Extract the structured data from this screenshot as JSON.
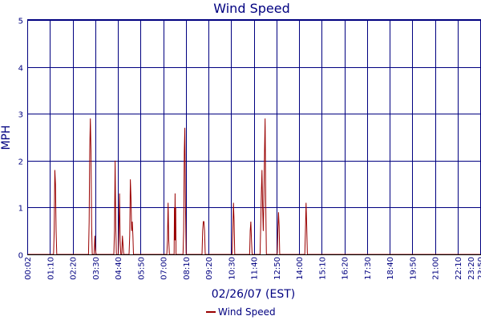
{
  "chart_data": {
    "type": "line",
    "title": "Wind Speed",
    "xlabel": "02/26/07 (EST)",
    "ylabel": "MPH",
    "ylim": [
      0,
      5
    ],
    "y_ticks": [
      "0",
      "1",
      "2",
      "3",
      "4",
      "5"
    ],
    "x_ticks": [
      "00:02",
      "01:10",
      "02:20",
      "03:30",
      "04:40",
      "05:50",
      "07:00",
      "08:10",
      "09:20",
      "10:30",
      "11:40",
      "12:50",
      "14:00",
      "15:10",
      "16:20",
      "17:30",
      "18:40",
      "19:50",
      "21:00",
      "22:10",
      "23:20",
      "23:50"
    ],
    "x_unit": "minutes of day",
    "xlim": [
      2,
      1430
    ],
    "grid": true,
    "legend_position": "bottom",
    "series": [
      {
        "name": "Wind Speed",
        "color": "#990000",
        "points": [
          [
            2,
            0
          ],
          [
            85,
            0
          ],
          [
            87,
            0.5
          ],
          [
            89,
            1.8
          ],
          [
            91,
            1.5
          ],
          [
            93,
            0.5
          ],
          [
            95,
            0
          ],
          [
            195,
            0
          ],
          [
            197,
            0.7
          ],
          [
            199,
            2.2
          ],
          [
            201,
            2.9
          ],
          [
            203,
            2.2
          ],
          [
            205,
            0.6
          ],
          [
            207,
            0
          ],
          [
            213,
            0
          ],
          [
            215,
            0.4
          ],
          [
            217,
            0.1
          ],
          [
            219,
            0
          ],
          [
            275,
            0
          ],
          [
            277,
            0.5
          ],
          [
            279,
            2.0
          ],
          [
            281,
            0.6
          ],
          [
            283,
            0
          ],
          [
            289,
            0
          ],
          [
            291,
            0.5
          ],
          [
            293,
            1.3
          ],
          [
            295,
            0.3
          ],
          [
            297,
            0
          ],
          [
            300,
            0
          ],
          [
            302,
            0.4
          ],
          [
            304,
            0.2
          ],
          [
            306,
            0
          ],
          [
            323,
            0
          ],
          [
            325,
            0.4
          ],
          [
            327,
            1.6
          ],
          [
            329,
            1.2
          ],
          [
            331,
            0.5
          ],
          [
            333,
            0.7
          ],
          [
            335,
            0.4
          ],
          [
            337,
            0
          ],
          [
            442,
            0
          ],
          [
            444,
            0.3
          ],
          [
            446,
            1.1
          ],
          [
            448,
            0.3
          ],
          [
            450,
            0
          ],
          [
            465,
            0
          ],
          [
            466,
            1.0
          ],
          [
            467,
            0.3
          ],
          [
            468,
            1.3
          ],
          [
            469,
            0.3
          ],
          [
            470,
            1.0
          ],
          [
            471,
            0
          ],
          [
            493,
            0
          ],
          [
            495,
            0.5
          ],
          [
            497,
            2.2
          ],
          [
            499,
            2.7
          ],
          [
            501,
            1.0
          ],
          [
            503,
            0
          ],
          [
            553,
            0
          ],
          [
            555,
            0.5
          ],
          [
            557,
            0.7
          ],
          [
            559,
            0.7
          ],
          [
            561,
            0.5
          ],
          [
            563,
            0
          ],
          [
            648,
            0
          ],
          [
            650,
            0.5
          ],
          [
            652,
            1.1
          ],
          [
            654,
            0.7
          ],
          [
            656,
            0
          ],
          [
            703,
            0
          ],
          [
            705,
            0.5
          ],
          [
            707,
            0.7
          ],
          [
            709,
            0.3
          ],
          [
            711,
            0
          ],
          [
            736,
            0
          ],
          [
            738,
            0.6
          ],
          [
            740,
            1.3
          ],
          [
            742,
            1.8
          ],
          [
            744,
            1.0
          ],
          [
            746,
            0.5
          ],
          [
            748,
            1.2
          ],
          [
            750,
            2.2
          ],
          [
            752,
            2.9
          ],
          [
            754,
            1.1
          ],
          [
            756,
            0
          ],
          [
            790,
            0
          ],
          [
            792,
            0.5
          ],
          [
            794,
            0.9
          ],
          [
            796,
            0.6
          ],
          [
            798,
            0
          ],
          [
            877,
            0
          ],
          [
            879,
            0.5
          ],
          [
            881,
            1.1
          ],
          [
            883,
            0.6
          ],
          [
            885,
            0
          ],
          [
            1430,
            0
          ]
        ]
      }
    ]
  }
}
